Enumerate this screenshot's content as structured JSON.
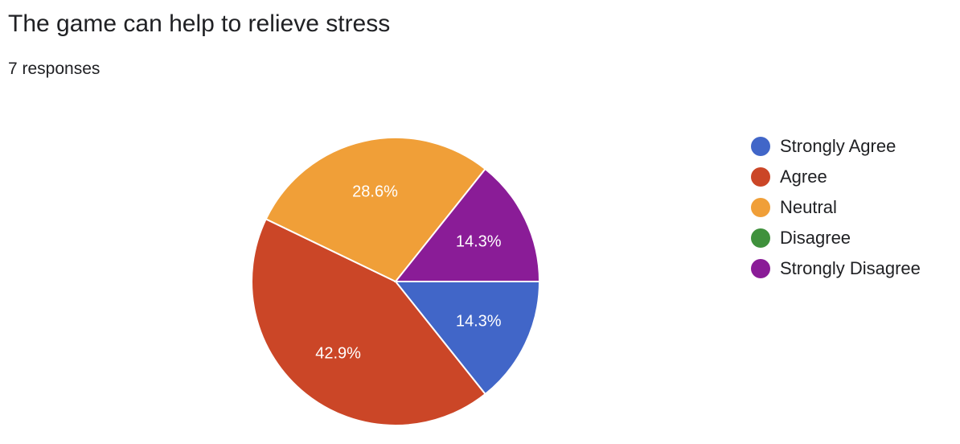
{
  "header": {
    "title": "The game can help to relieve stress",
    "subtitle": "7 responses"
  },
  "chart_data": {
    "type": "pie",
    "title": "The game can help to relieve stress",
    "slices": [
      {
        "label": "Strongly Agree",
        "value": 14.3,
        "display": "14.3%",
        "color": "#4166c8"
      },
      {
        "label": "Agree",
        "value": 42.9,
        "display": "42.9%",
        "color": "#cb4627"
      },
      {
        "label": "Neutral",
        "value": 28.6,
        "display": "28.6%",
        "color": "#f09f38"
      },
      {
        "label": "Disagree",
        "value": 0,
        "display": "",
        "color": "#3f913c"
      },
      {
        "label": "Strongly Disagree",
        "value": 14.3,
        "display": "14.3%",
        "color": "#8a1c97"
      }
    ],
    "legend_position": "right"
  }
}
